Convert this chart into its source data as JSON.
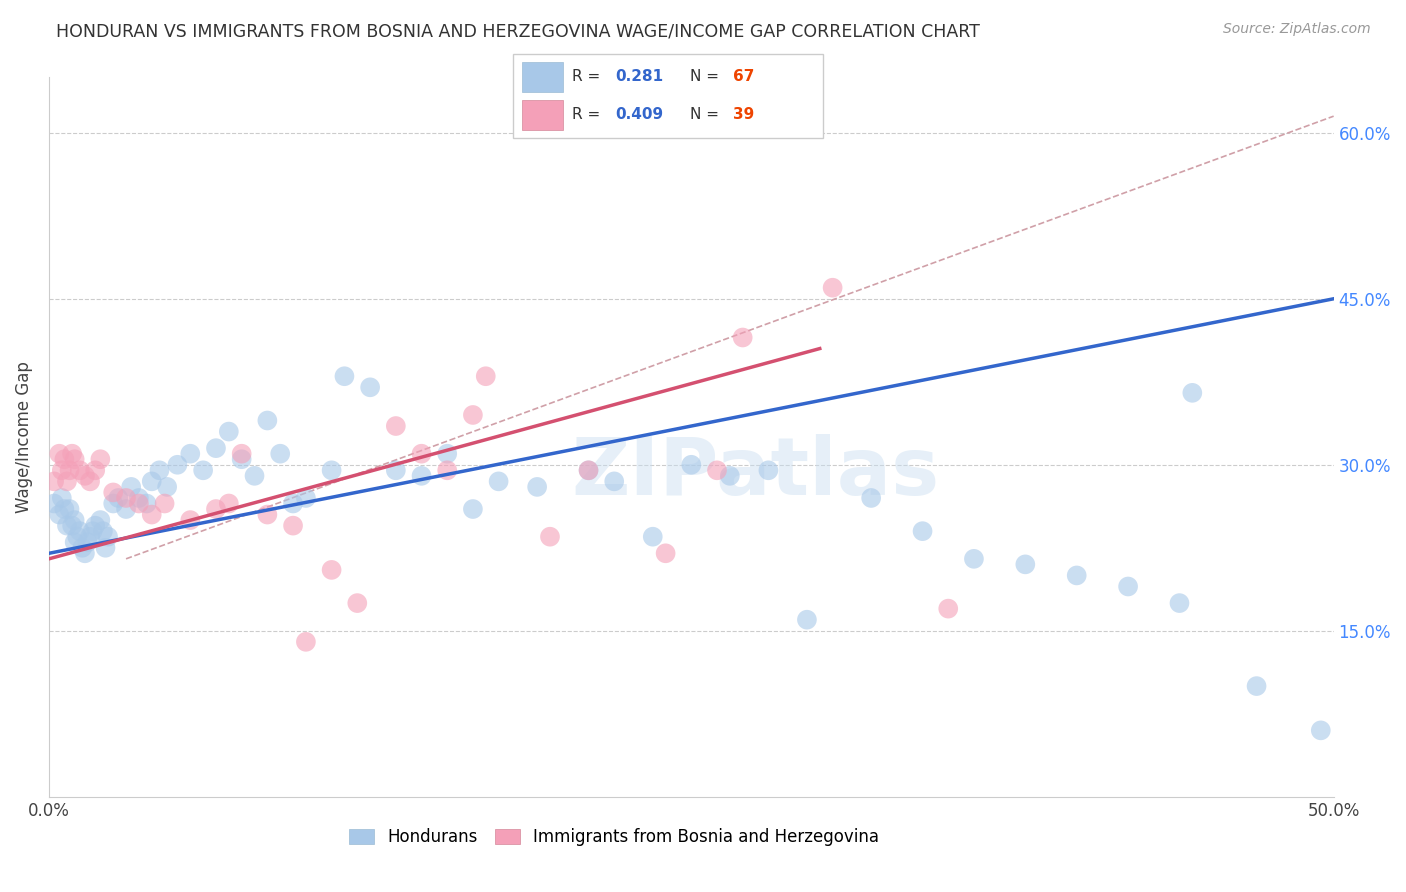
{
  "title": "HONDURAN VS IMMIGRANTS FROM BOSNIA AND HERZEGOVINA WAGE/INCOME GAP CORRELATION CHART",
  "source": "Source: ZipAtlas.com",
  "ylabel": "Wage/Income Gap",
  "xlim": [
    0.0,
    0.5
  ],
  "ylim": [
    0.0,
    0.65
  ],
  "ytick_positions": [
    0.15,
    0.3,
    0.45,
    0.6
  ],
  "ytick_labels": [
    "15.0%",
    "30.0%",
    "45.0%",
    "60.0%"
  ],
  "R_blue": "0.281",
  "N_blue": "67",
  "R_pink": "0.409",
  "N_pink": "39",
  "blue_color": "#a8c8e8",
  "pink_color": "#f4a0b8",
  "blue_line_color": "#3366cc",
  "pink_line_color": "#d45070",
  "dashed_line_color": "#d0a0a8",
  "watermark": "ZIPatlas",
  "blue_scatter_x": [
    0.002,
    0.004,
    0.005,
    0.006,
    0.007,
    0.008,
    0.009,
    0.01,
    0.01,
    0.011,
    0.012,
    0.013,
    0.014,
    0.015,
    0.016,
    0.017,
    0.018,
    0.02,
    0.021,
    0.022,
    0.023,
    0.025,
    0.027,
    0.03,
    0.032,
    0.035,
    0.038,
    0.04,
    0.043,
    0.046,
    0.05,
    0.055,
    0.06,
    0.065,
    0.07,
    0.075,
    0.08,
    0.085,
    0.09,
    0.095,
    0.1,
    0.11,
    0.115,
    0.125,
    0.135,
    0.145,
    0.155,
    0.165,
    0.175,
    0.19,
    0.21,
    0.22,
    0.235,
    0.25,
    0.265,
    0.28,
    0.295,
    0.32,
    0.34,
    0.36,
    0.38,
    0.4,
    0.42,
    0.44,
    0.445,
    0.47,
    0.495
  ],
  "blue_scatter_y": [
    0.265,
    0.255,
    0.27,
    0.26,
    0.245,
    0.26,
    0.245,
    0.25,
    0.23,
    0.235,
    0.24,
    0.225,
    0.22,
    0.23,
    0.235,
    0.24,
    0.245,
    0.25,
    0.24,
    0.225,
    0.235,
    0.265,
    0.27,
    0.26,
    0.28,
    0.27,
    0.265,
    0.285,
    0.295,
    0.28,
    0.3,
    0.31,
    0.295,
    0.315,
    0.33,
    0.305,
    0.29,
    0.34,
    0.31,
    0.265,
    0.27,
    0.295,
    0.38,
    0.37,
    0.295,
    0.29,
    0.31,
    0.26,
    0.285,
    0.28,
    0.295,
    0.285,
    0.235,
    0.3,
    0.29,
    0.295,
    0.16,
    0.27,
    0.24,
    0.215,
    0.21,
    0.2,
    0.19,
    0.175,
    0.365,
    0.1,
    0.06
  ],
  "pink_scatter_x": [
    0.002,
    0.004,
    0.005,
    0.006,
    0.007,
    0.008,
    0.009,
    0.01,
    0.012,
    0.014,
    0.016,
    0.018,
    0.02,
    0.025,
    0.03,
    0.035,
    0.04,
    0.045,
    0.055,
    0.065,
    0.07,
    0.075,
    0.085,
    0.095,
    0.1,
    0.11,
    0.12,
    0.135,
    0.145,
    0.155,
    0.165,
    0.17,
    0.195,
    0.21,
    0.24,
    0.26,
    0.27,
    0.305,
    0.35
  ],
  "pink_scatter_y": [
    0.285,
    0.31,
    0.295,
    0.305,
    0.285,
    0.295,
    0.31,
    0.305,
    0.295,
    0.29,
    0.285,
    0.295,
    0.305,
    0.275,
    0.27,
    0.265,
    0.255,
    0.265,
    0.25,
    0.26,
    0.265,
    0.31,
    0.255,
    0.245,
    0.14,
    0.205,
    0.175,
    0.335,
    0.31,
    0.295,
    0.345,
    0.38,
    0.235,
    0.295,
    0.22,
    0.295,
    0.415,
    0.46,
    0.17
  ],
  "blue_line_x": [
    0.0,
    0.5
  ],
  "blue_line_y": [
    0.22,
    0.45
  ],
  "pink_line_x": [
    0.0,
    0.3
  ],
  "pink_line_y": [
    0.215,
    0.405
  ],
  "dash_line_x": [
    0.03,
    0.5
  ],
  "dash_line_y": [
    0.215,
    0.615
  ]
}
